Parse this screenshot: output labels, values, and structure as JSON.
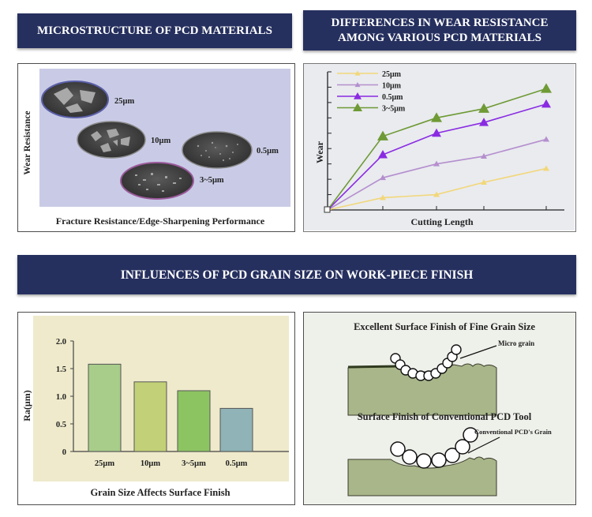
{
  "banners": {
    "microstructure": "MICROSTRUCTURE  OF PCD MATERIALS",
    "wear_line1": "DIFFERENCES IN WEAR RESISTANCE",
    "wear_line2": "AMONG VARIOUS PCD MATERIALS",
    "finish": "INFLUENCES OF PCD GRAIN SIZE ON WORK-PIECE FINISH"
  },
  "microstructure": {
    "ylabel": "Wear Resistance",
    "xlabel": "Fracture Resistance/Edge-Sharpening Performance",
    "samples": [
      "25μm",
      "10μm",
      "0.5μm",
      "3~5μm"
    ],
    "background": "#c9cbe6"
  },
  "schematic": {
    "fine_title": "Excellent Surface Finish of Fine Grain Size",
    "fine_label": "Micro grain",
    "conv_title": "Surface Finish of Conventional PCD Tool",
    "conv_label": "Conventional PCD's Grain"
  },
  "chart_data": [
    {
      "type": "line",
      "title": "",
      "xlabel": "Cutting Length",
      "ylabel": "Wear",
      "x": [
        0,
        1,
        2,
        3,
        4
      ],
      "series": [
        {
          "name": "25μm",
          "color": "#f2d77a",
          "values": [
            0,
            0.8,
            1.0,
            1.8,
            2.7
          ]
        },
        {
          "name": "10μm",
          "color": "#b58fce",
          "values": [
            0,
            2.1,
            3.0,
            3.5,
            4.6
          ]
        },
        {
          "name": "0.5μm",
          "color": "#8a2be2",
          "values": [
            0,
            3.6,
            5.0,
            5.7,
            6.9
          ]
        },
        {
          "name": "3~5μm",
          "color": "#6f9a35",
          "values": [
            0,
            4.8,
            6.0,
            6.6,
            7.9
          ]
        }
      ],
      "ylim": [
        0,
        9
      ],
      "legend": "top-left"
    },
    {
      "type": "bar",
      "title": "Grain Size Affects Surface Finish",
      "xlabel": "",
      "ylabel": "Ra(μm)",
      "categories": [
        "25μm",
        "10μm",
        "3~5μm",
        "0.5μm"
      ],
      "values": [
        1.58,
        1.26,
        1.1,
        0.78
      ],
      "colors": [
        "#a8cd8a",
        "#c2d177",
        "#8cc462",
        "#8fb3b7"
      ],
      "yticks": [
        "0",
        "0.5",
        "1.0",
        "1.5",
        "2.0"
      ],
      "ylim": [
        0,
        2.0
      ],
      "background": "#eeeacb"
    }
  ]
}
